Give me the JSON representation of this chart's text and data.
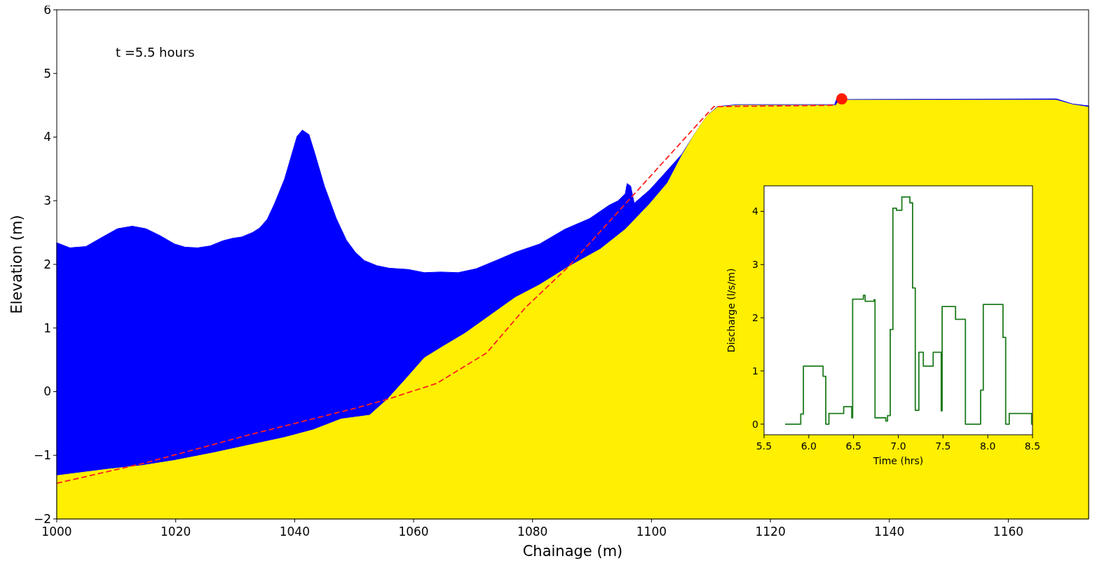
{
  "chart_data": [
    {
      "type": "area",
      "xlabel": "Chainage (m)",
      "ylabel": "Elevation (m)",
      "annotations": [
        "t =5.5 hours"
      ],
      "xlim": [
        1000,
        1173.5
      ],
      "ylim": [
        -2,
        6
      ],
      "xticks": [
        1000,
        1020,
        1040,
        1060,
        1080,
        1100,
        1120,
        1140,
        1160
      ],
      "yticks": [
        {
          "value": -2,
          "label": "−2"
        },
        {
          "value": -1,
          "label": "−1"
        },
        0,
        1,
        2,
        3,
        4,
        5,
        6
      ],
      "series": [
        {
          "type": "area",
          "color": "#0000ff",
          "x": [
            1000,
            1000,
            1002.2,
            1004.9,
            1007.9,
            1010.2,
            1012.7,
            1015,
            1017.4,
            1019.8,
            1021.6,
            1023.7,
            1025.8,
            1027.9,
            1029.6,
            1031.1,
            1032.9,
            1034.1,
            1035.4,
            1036.6,
            1038.3,
            1040.4,
            1041.3,
            1042.4,
            1043.4,
            1045,
            1047,
            1048.7,
            1050.2,
            1051.7,
            1053.8,
            1055.9,
            1059.1,
            1061.8,
            1064.5,
            1067.5,
            1070.5,
            1074.1,
            1077.1,
            1081.2,
            1085.4,
            1089.6,
            1092.9,
            1094.4,
            1095.6,
            1095.9,
            1096.5,
            1097.1,
            1099.7,
            1102.7,
            1105.1,
            1107.2,
            1109.3,
            1111.1,
            1114.5,
            1130.8,
            1131.1,
            1168.1,
            1170.8,
            1173.5,
            1173.5
          ],
          "values": [
            -2,
            2.34,
            2.26,
            2.28,
            2.44,
            2.56,
            2.6,
            2.56,
            2.45,
            2.32,
            2.27,
            2.26,
            2.29,
            2.37,
            2.41,
            2.43,
            2.5,
            2.57,
            2.71,
            2.95,
            3.34,
            4.01,
            4.11,
            4.04,
            3.74,
            3.23,
            2.72,
            2.38,
            2.19,
            2.06,
            1.98,
            1.94,
            1.92,
            1.87,
            1.88,
            1.87,
            1.93,
            2.07,
            2.19,
            2.32,
            2.55,
            2.72,
            2.93,
            3,
            3.11,
            3.27,
            3.23,
            2.96,
            3.17,
            3.48,
            3.73,
            4.04,
            4.33,
            4.48,
            4.51,
            4.51,
            4.59,
            4.6,
            4.52,
            4.49,
            -2
          ]
        },
        {
          "type": "area",
          "color": "#ffef00",
          "x": [
            1000,
            1000,
            1008.4,
            1014.4,
            1019.8,
            1026.4,
            1032.3,
            1038.3,
            1043.1,
            1047.8,
            1052.6,
            1055.6,
            1058.6,
            1061.8,
            1065.1,
            1068.7,
            1072.9,
            1077.1,
            1081.2,
            1086,
            1091.4,
            1095.6,
            1099.7,
            1102.7,
            1105.1,
            1107.2,
            1109.3,
            1111.1,
            1114.5,
            1131,
            1131.6,
            1168.1,
            1170.8,
            1173.5,
            1173.5
          ],
          "values": [
            -2,
            -1.32,
            -1.22,
            -1.16,
            -1.08,
            -0.96,
            -0.84,
            -0.72,
            -0.6,
            -0.43,
            -0.37,
            -0.12,
            0.19,
            0.53,
            0.72,
            0.92,
            1.2,
            1.48,
            1.68,
            1.96,
            2.24,
            2.55,
            2.95,
            3.28,
            3.71,
            4.04,
            4.33,
            4.47,
            4.5,
            4.5,
            4.58,
            4.58,
            4.51,
            4.47,
            -2
          ]
        },
        {
          "type": "line",
          "color": "#ff2020",
          "line_style": "dashed",
          "x": [
            1000,
            1014.4,
            1032.3,
            1050.2,
            1055.6,
            1063.9,
            1072.3,
            1078.8,
            1086,
            1095.6,
            1108.7,
            1110.5,
            1131
          ],
          "values": [
            -1.44,
            -1.13,
            -0.68,
            -0.26,
            -0.12,
            0.13,
            0.61,
            1.32,
            1.96,
            2.95,
            4.3,
            4.48,
            4.5
          ]
        },
        {
          "type": "scatter",
          "color": "#ff1a00",
          "marker": "circle",
          "x": [
            1132
          ],
          "values": [
            4.6
          ]
        }
      ]
    },
    {
      "type": "step",
      "xlabel": "Time (hrs)",
      "ylabel": "Discharge (l/s/m)",
      "xlim": [
        5.5,
        8.5
      ],
      "ylim": [
        -0.2,
        4.48
      ],
      "xticks": [
        5.5,
        {
          "value": 6,
          "label": "6.0"
        },
        6.5,
        {
          "value": 7,
          "label": "7.0"
        },
        7.5,
        {
          "value": 8,
          "label": "8.0"
        },
        8.5
      ],
      "yticks": [
        0,
        1,
        2,
        3,
        4
      ],
      "series": [
        {
          "color": "#1e7b1e",
          "x": [
            5.735,
            5.91,
            5.94,
            6.16,
            6.19,
            6.225,
            6.39,
            6.48,
            6.49,
            6.61,
            6.63,
            6.73,
            6.74,
            6.86,
            6.88,
            6.91,
            6.94,
            6.98,
            7.04,
            7.13,
            7.16,
            7.19,
            7.23,
            7.28,
            7.39,
            7.48,
            7.49,
            7.64,
            7.75,
            7.92,
            7.95,
            8.17,
            8.2,
            8.24,
            8.49,
            8.5
          ],
          "values": [
            0,
            0.19,
            1.09,
            0.9,
            0,
            0.2,
            0.33,
            0.12,
            2.35,
            2.42,
            2.31,
            2.34,
            0.12,
            0.06,
            0.16,
            1.78,
            4.06,
            4.02,
            4.27,
            4.16,
            2.56,
            0.26,
            1.35,
            1.09,
            1.35,
            0.25,
            2.21,
            1.97,
            0,
            0.64,
            2.25,
            1.63,
            0,
            0.2,
            0,
            0
          ]
        }
      ]
    }
  ]
}
